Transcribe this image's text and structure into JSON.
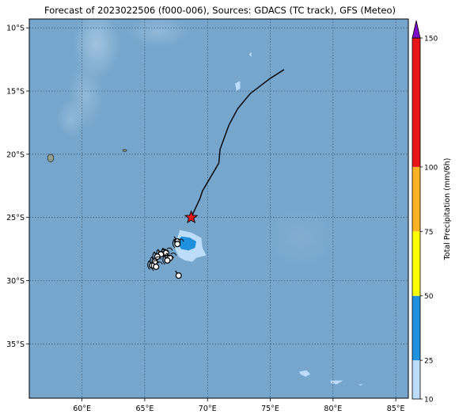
{
  "title": "Forecast of 2023022506 (f000-006), Sources: GDACS (TC track), GFS (Meteo)",
  "map": {
    "lon_range": [
      55.8,
      86.0
    ],
    "lat_range": [
      -39.3,
      -9.3
    ],
    "lon_ticks": [
      60,
      65,
      70,
      75,
      80,
      85
    ],
    "lat_ticks": [
      -10,
      -15,
      -20,
      -25,
      -30,
      -35
    ],
    "lon_tick_labels": [
      "60°E",
      "65°E",
      "70°E",
      "75°E",
      "80°E",
      "85°E"
    ],
    "lat_tick_labels": [
      "10°S",
      "15°S",
      "20°S",
      "25°S",
      "30°S",
      "35°S"
    ],
    "gridlines": true,
    "ocean_color": "#76a6cc"
  },
  "track": {
    "points": [
      [
        76.1,
        -13.3
      ],
      [
        75.0,
        -14.0
      ],
      [
        73.4,
        -15.2
      ],
      [
        72.4,
        -16.4
      ],
      [
        71.7,
        -17.7
      ],
      [
        71.3,
        -18.8
      ],
      [
        71.0,
        -19.6
      ],
      [
        70.9,
        -20.7
      ],
      [
        69.6,
        -22.9
      ],
      [
        69.4,
        -23.5
      ],
      [
        68.7,
        -25.0
      ]
    ],
    "current_position": [
      68.7,
      -25.0
    ],
    "current_marker_color": "#e8151b"
  },
  "precip_areas": [
    {
      "level": "10-25",
      "color": "#bcdcfa",
      "polygon": [
        [
          67.8,
          -26.0
        ],
        [
          68.7,
          -26.2
        ],
        [
          69.5,
          -26.6
        ],
        [
          69.6,
          -27.4
        ],
        [
          69.9,
          -28.0
        ],
        [
          69.1,
          -28.2
        ],
        [
          68.8,
          -28.5
        ],
        [
          68.2,
          -28.4
        ],
        [
          67.7,
          -28.1
        ],
        [
          67.3,
          -27.2
        ],
        [
          67.6,
          -26.6
        ]
      ]
    },
    {
      "level": "25-50",
      "color": "#1f90dd",
      "polygon": [
        [
          67.9,
          -26.5
        ],
        [
          68.6,
          -26.6
        ],
        [
          69.1,
          -26.9
        ],
        [
          69.0,
          -27.4
        ],
        [
          68.5,
          -27.6
        ],
        [
          67.9,
          -27.5
        ],
        [
          67.6,
          -27.0
        ]
      ]
    },
    {
      "level": "10-25",
      "color": "#bcdcfa",
      "polygon": [
        [
          72.2,
          -14.4
        ],
        [
          72.6,
          -14.2
        ],
        [
          72.6,
          -14.8
        ],
        [
          72.3,
          -15.0
        ]
      ]
    },
    {
      "level": "10-25",
      "color": "#bcdcfa",
      "polygon": [
        [
          73.3,
          -12.1
        ],
        [
          73.5,
          -11.9
        ],
        [
          73.5,
          -12.3
        ]
      ]
    },
    {
      "level": "10-25",
      "color": "#bcdcfa",
      "polygon": [
        [
          77.3,
          -37.2
        ],
        [
          77.9,
          -37.1
        ],
        [
          78.2,
          -37.4
        ],
        [
          77.8,
          -37.6
        ],
        [
          77.4,
          -37.4
        ]
      ]
    },
    {
      "level": "10-25",
      "color": "#bcdcfa",
      "polygon": [
        [
          79.8,
          -37.9
        ],
        [
          80.8,
          -37.9
        ],
        [
          80.3,
          -38.2
        ],
        [
          79.8,
          -38.1
        ]
      ]
    },
    {
      "level": "10-25",
      "color": "#bcdcfa",
      "polygon": [
        [
          82.0,
          -38.2
        ],
        [
          82.4,
          -38.2
        ],
        [
          82.2,
          -38.3
        ]
      ]
    }
  ],
  "islands": [
    {
      "name_hidden": true,
      "center": [
        57.5,
        -20.3
      ],
      "r": [
        0.25,
        0.3
      ],
      "color": "#8f9e8f"
    },
    {
      "name_hidden": true,
      "center": [
        63.4,
        -19.7
      ],
      "r": [
        0.15,
        0.08
      ],
      "color": "#8f9e8f"
    }
  ],
  "wind_symbols": [
    {
      "pos": [
        67.6,
        -26.9
      ],
      "barbs": 0
    },
    {
      "pos": [
        67.6,
        -27.1
      ],
      "barbs": 2
    },
    {
      "pos": [
        66.7,
        -27.8
      ],
      "barbs": 2
    },
    {
      "pos": [
        66.3,
        -27.9
      ],
      "barbs": 2
    },
    {
      "pos": [
        66.0,
        -28.1
      ],
      "barbs": 2
    },
    {
      "pos": [
        65.8,
        -28.5
      ],
      "barbs": 2
    },
    {
      "pos": [
        65.6,
        -28.8
      ],
      "barbs": 2
    },
    {
      "pos": [
        65.9,
        -28.9
      ],
      "barbs": 2
    },
    {
      "pos": [
        67.0,
        -28.2
      ],
      "barbs": 2
    },
    {
      "pos": [
        66.8,
        -28.4
      ],
      "barbs": 2
    },
    {
      "pos": [
        67.7,
        -29.6
      ],
      "barbs": 0
    }
  ],
  "colorbar": {
    "label": "Total Precipitation (mm/6h)",
    "levels": [
      10,
      25,
      50,
      75,
      100,
      150
    ],
    "tick_labels": [
      "10",
      "25",
      "50",
      "75",
      "100",
      "150"
    ],
    "colors": [
      "#bcdcfa",
      "#1f90dd",
      "#ffff00",
      "#fdb226",
      "#e8151b"
    ],
    "extend_color": "#7d0ec9"
  }
}
